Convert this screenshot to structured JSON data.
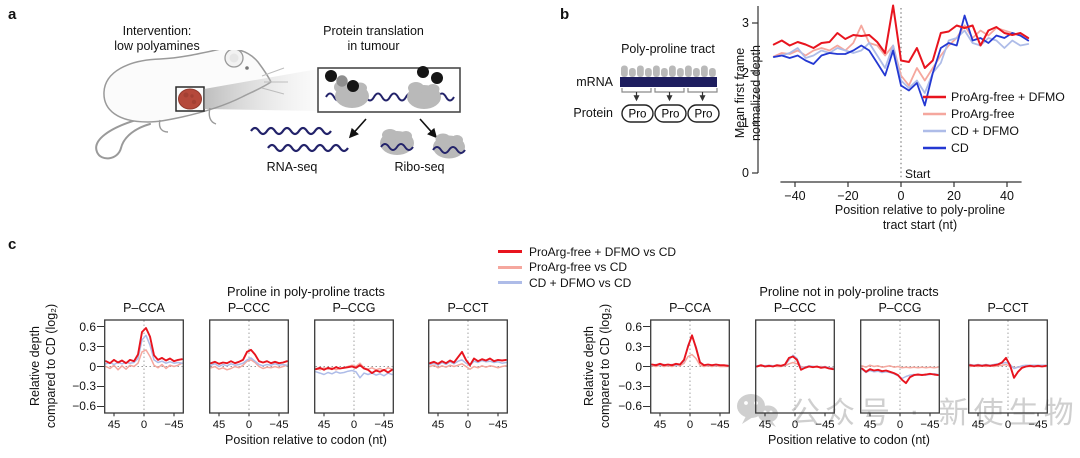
{
  "figure": {
    "panel_a_label": "a",
    "panel_b_label": "b",
    "panel_c_label": "c"
  },
  "panel_a": {
    "intervention_line1": "Intervention:",
    "intervention_line2": "low polyamines",
    "translation_line1": "Protein translation",
    "translation_line2": "in tumour",
    "rna_seq_label": "RNA-seq",
    "ribo_seq_label": "Ribo-seq",
    "colors": {
      "tumor": "#b5493b",
      "mrna": "#23236a",
      "ribosome": "#b9b9b9"
    }
  },
  "panel_b": {
    "diagram": {
      "tract_label": "Poly-proline tract",
      "mrna_label": "mRNA",
      "protein_label": "Protein",
      "pro_labels": [
        "Pro",
        "Pro",
        "Pro"
      ]
    }
  },
  "panel_c": {
    "legend": [
      {
        "label": "ProArg-free + DFMO vs CD",
        "color": "#e8141e"
      },
      {
        "label": "ProArg-free vs CD",
        "color": "#f5a79e"
      },
      {
        "label": "CD + DFMO vs CD",
        "color": "#aebce8"
      }
    ]
  },
  "watermark": {
    "icon": "wechat-icon",
    "text": "公众号 · 新使生物"
  },
  "chart_data": [
    {
      "id": "panel-b-metagene",
      "type": "line",
      "ylabel_lines": [
        "Mean first frame",
        "normalized depth"
      ],
      "xlabel_lines": [
        "Position relative to poly-proline",
        "tract start (nt)"
      ],
      "xlim": [
        -48,
        48
      ],
      "ylim": [
        0,
        3.4
      ],
      "xticks": [
        -40,
        -20,
        0,
        20,
        40
      ],
      "yticks": [
        0,
        1,
        2,
        3
      ],
      "annotation": {
        "text": "Start",
        "x": 0
      },
      "legend_position": "right-inside",
      "x": [
        -48,
        -45,
        -42,
        -39,
        -36,
        -33,
        -30,
        -27,
        -24,
        -21,
        -18,
        -15,
        -12,
        -9,
        -6,
        -3,
        0,
        3,
        6,
        9,
        12,
        15,
        18,
        21,
        24,
        27,
        30,
        33,
        36,
        39,
        42,
        45,
        48
      ],
      "series": [
        {
          "name": "ProArg-free + DFMO",
          "color": "#e8141e",
          "values": [
            2.57,
            2.65,
            2.55,
            2.62,
            2.57,
            2.5,
            2.6,
            2.62,
            2.8,
            2.68,
            2.76,
            2.74,
            2.76,
            2.62,
            2.4,
            3.35,
            2.25,
            2.22,
            2.5,
            2.1,
            2.25,
            2.8,
            2.83,
            2.95,
            2.9,
            2.95,
            2.55,
            2.85,
            2.92,
            2.8,
            2.76,
            2.8,
            2.7
          ]
        },
        {
          "name": "ProArg-free",
          "color": "#f5a79e",
          "values": [
            2.33,
            2.4,
            2.38,
            2.45,
            2.35,
            2.45,
            2.5,
            2.45,
            2.55,
            2.45,
            2.6,
            2.95,
            2.6,
            2.55,
            2.35,
            2.55,
            1.95,
            1.75,
            2.1,
            1.85,
            2.1,
            2.35,
            2.55,
            2.7,
            2.95,
            2.7,
            2.85,
            2.75,
            2.9,
            2.85,
            2.8,
            2.75,
            2.65
          ]
        },
        {
          "name": "CD + DFMO",
          "color": "#aebce8",
          "values": [
            2.32,
            2.35,
            2.4,
            2.5,
            2.3,
            2.35,
            2.45,
            2.4,
            2.5,
            2.45,
            2.4,
            2.45,
            2.6,
            2.35,
            2.1,
            2.55,
            1.85,
            1.7,
            1.85,
            1.6,
            2.0,
            2.2,
            2.65,
            2.7,
            2.85,
            2.6,
            2.55,
            2.7,
            2.65,
            2.5,
            2.65,
            2.55,
            2.58
          ]
        },
        {
          "name": "CD",
          "color": "#2438d2",
          "values": [
            2.32,
            2.35,
            2.3,
            2.35,
            2.25,
            2.18,
            2.35,
            2.4,
            2.38,
            2.38,
            2.45,
            2.55,
            2.45,
            2.2,
            1.95,
            2.45,
            1.75,
            1.65,
            1.8,
            1.35,
            2.0,
            2.5,
            2.6,
            2.55,
            3.15,
            2.65,
            2.7,
            2.6,
            2.75,
            2.7,
            2.8,
            2.75,
            2.65
          ]
        }
      ]
    },
    {
      "id": "panel-c-in-tracts",
      "type": "line-small-multiples",
      "group_title": "Proline in poly-proline tracts",
      "ylabel_lines": [
        "Relative depth",
        "compared to CD (log₂)"
      ],
      "xlabel": "Position relative to codon (nt)",
      "xlim": [
        60,
        -60
      ],
      "ylim": [
        -0.7,
        0.7
      ],
      "xticks": [
        45,
        0,
        -45
      ],
      "yticks": [
        0.6,
        0.3,
        0,
        -0.3,
        -0.6
      ],
      "series_names": [
        "ProArg-free + DFMO vs CD",
        "ProArg-free vs CD",
        "CD + DFMO vs CD"
      ],
      "series_colors": [
        "#e8141e",
        "#f5a79e",
        "#aebce8"
      ],
      "x": [
        57,
        51,
        45,
        39,
        33,
        27,
        21,
        15,
        9,
        3,
        -3,
        -9,
        -15,
        -21,
        -27,
        -33,
        -39,
        -45,
        -51,
        -57
      ],
      "subplots": [
        {
          "title": "P–CCA",
          "series": [
            [
              0.08,
              0.05,
              0.1,
              0.06,
              0.09,
              0.05,
              0.1,
              0.08,
              0.18,
              0.52,
              0.58,
              0.45,
              0.17,
              0.1,
              0.13,
              0.09,
              0.12,
              0.08,
              0.1,
              0.11
            ],
            [
              0.0,
              -0.03,
              0.02,
              -0.05,
              0.01,
              -0.04,
              0.02,
              0.0,
              0.05,
              0.22,
              0.25,
              0.15,
              0.02,
              -0.02,
              0.03,
              -0.03,
              0.02,
              0.0,
              0.02,
              0.05
            ],
            [
              0.04,
              0.06,
              0.03,
              0.06,
              0.04,
              0.06,
              0.05,
              0.06,
              0.12,
              0.4,
              0.47,
              0.32,
              0.1,
              0.06,
              0.08,
              0.05,
              0.07,
              0.05,
              0.06,
              0.05
            ]
          ]
        },
        {
          "title": "P–CCC",
          "series": [
            [
              0.05,
              0.07,
              0.04,
              0.06,
              0.05,
              0.08,
              0.05,
              0.07,
              0.1,
              0.22,
              0.25,
              0.18,
              0.08,
              0.06,
              0.08,
              0.05,
              0.07,
              0.05,
              0.06,
              0.08
            ],
            [
              -0.02,
              0.0,
              -0.04,
              -0.02,
              -0.05,
              -0.03,
              0.0,
              -0.02,
              0.02,
              0.08,
              0.1,
              0.06,
              0.0,
              -0.03,
              -0.01,
              -0.02,
              0.0,
              -0.02,
              0.0,
              0.02
            ],
            [
              0.02,
              0.04,
              0.0,
              0.03,
              0.01,
              0.04,
              0.02,
              0.03,
              0.05,
              0.1,
              0.13,
              0.08,
              0.03,
              0.01,
              0.03,
              0.02,
              0.04,
              0.02,
              0.03,
              0.02
            ]
          ]
        },
        {
          "title": "P–CCG",
          "series": [
            [
              -0.04,
              -0.02,
              -0.05,
              -0.02,
              -0.04,
              -0.01,
              -0.03,
              -0.02,
              -0.01,
              0.0,
              -0.02,
              0.02,
              -0.03,
              -0.05,
              -0.1,
              -0.06,
              -0.08,
              -0.05,
              -0.09,
              -0.05
            ],
            [
              -0.03,
              -0.05,
              -0.02,
              -0.04,
              -0.02,
              -0.05,
              -0.03,
              -0.02,
              0.0,
              0.02,
              0.0,
              0.05,
              -0.02,
              -0.04,
              -0.02,
              -0.05,
              -0.03,
              -0.06,
              -0.02,
              -0.04
            ],
            [
              -0.08,
              -0.1,
              -0.12,
              -0.09,
              -0.11,
              -0.08,
              -0.1,
              -0.09,
              -0.07,
              -0.06,
              -0.08,
              -0.17,
              -0.1,
              -0.12,
              -0.1,
              -0.13,
              -0.11,
              -0.14,
              -0.1,
              -0.12
            ]
          ]
        },
        {
          "title": "P–CCT",
          "series": [
            [
              0.05,
              0.07,
              0.04,
              0.08,
              0.05,
              0.09,
              0.06,
              0.14,
              0.22,
              0.1,
              0.02,
              0.12,
              0.08,
              0.11,
              0.09,
              0.12,
              0.08,
              0.1,
              0.09,
              0.1
            ],
            [
              0.0,
              0.02,
              -0.02,
              0.01,
              -0.01,
              0.02,
              0.0,
              0.02,
              0.04,
              0.0,
              -0.04,
              0.0,
              -0.02,
              0.01,
              -0.01,
              0.01,
              0.0,
              -0.02,
              0.0,
              0.01
            ],
            [
              0.03,
              0.05,
              0.02,
              0.06,
              0.03,
              0.07,
              0.04,
              0.08,
              0.1,
              0.05,
              0.02,
              0.08,
              0.06,
              0.09,
              0.07,
              0.08,
              0.06,
              0.07,
              0.05,
              0.06
            ]
          ]
        }
      ]
    },
    {
      "id": "panel-c-not-in-tracts",
      "type": "line-small-multiples",
      "group_title": "Proline not in poly-proline tracts",
      "ylabel_lines": [
        "Relative depth",
        "compared to CD (log₂)"
      ],
      "xlabel": "Position relative to codon (nt)",
      "xlim": [
        60,
        -60
      ],
      "ylim": [
        -0.7,
        0.7
      ],
      "xticks": [
        45,
        0,
        -45
      ],
      "yticks": [
        0.6,
        0.3,
        0,
        -0.3,
        -0.6
      ],
      "series_names": [
        "ProArg-free + DFMO vs CD",
        "ProArg-free vs CD",
        "CD + DFMO vs CD"
      ],
      "series_colors": [
        "#e8141e",
        "#f5a79e",
        "#aebce8"
      ],
      "x": [
        57,
        51,
        45,
        39,
        33,
        27,
        21,
        15,
        9,
        3,
        -3,
        -9,
        -15,
        -21,
        -27,
        -33,
        -39,
        -45,
        -51,
        -57
      ],
      "subplots": [
        {
          "title": "P–CCA",
          "series": [
            [
              0.03,
              0.02,
              0.04,
              0.02,
              0.03,
              0.02,
              0.04,
              0.03,
              0.1,
              0.3,
              0.47,
              0.28,
              0.06,
              0.02,
              0.03,
              0.02,
              0.03,
              0.02,
              0.02,
              0.01
            ],
            [
              0.01,
              0.0,
              0.02,
              0.0,
              0.01,
              0.0,
              0.02,
              0.01,
              0.05,
              0.15,
              0.18,
              0.12,
              0.02,
              0.0,
              0.01,
              0.0,
              0.01,
              0.0,
              0.0,
              0.0
            ],
            [
              0.02,
              0.03,
              0.02,
              0.03,
              0.02,
              0.03,
              0.02,
              0.03,
              0.08,
              0.32,
              0.45,
              0.3,
              0.07,
              0.02,
              0.02,
              0.02,
              0.02,
              0.02,
              0.02,
              0.02
            ]
          ]
        },
        {
          "title": "P–CCC",
          "series": [
            [
              0.0,
              0.02,
              0.0,
              0.01,
              0.0,
              0.02,
              0.01,
              0.03,
              0.13,
              0.15,
              0.1,
              -0.05,
              -0.02,
              0.0,
              -0.01,
              0.0,
              -0.02,
              -0.01,
              -0.03,
              -0.04
            ],
            [
              0.0,
              0.01,
              0.0,
              0.0,
              0.01,
              0.0,
              0.0,
              0.01,
              0.04,
              0.06,
              0.04,
              0.0,
              -0.01,
              0.0,
              0.0,
              -0.01,
              0.0,
              -0.01,
              -0.02,
              -0.02
            ],
            [
              0.01,
              0.02,
              0.01,
              0.02,
              0.01,
              0.02,
              0.01,
              0.02,
              0.1,
              0.17,
              0.12,
              -0.02,
              -0.01,
              0.01,
              0.0,
              0.0,
              -0.01,
              0.0,
              -0.02,
              -0.03
            ]
          ]
        },
        {
          "title": "P–CCG",
          "series": [
            [
              -0.03,
              -0.08,
              -0.04,
              -0.06,
              -0.05,
              -0.07,
              -0.06,
              -0.08,
              -0.1,
              -0.13,
              -0.2,
              -0.25,
              -0.16,
              -0.13,
              -0.12,
              -0.13,
              -0.12,
              -0.11,
              -0.12,
              -0.13
            ],
            [
              0.01,
              -0.01,
              0.02,
              0.0,
              0.01,
              -0.01,
              0.0,
              0.01,
              -0.01,
              0.0,
              -0.02,
              -0.01,
              -0.02,
              -0.01,
              -0.02,
              -0.01,
              -0.02,
              -0.01,
              -0.02,
              -0.01
            ],
            [
              -0.04,
              -0.09,
              -0.06,
              -0.08,
              -0.07,
              -0.09,
              -0.08,
              -0.09,
              -0.11,
              -0.14,
              -0.18,
              -0.15,
              -0.13,
              -0.12,
              -0.13,
              -0.12,
              -0.13,
              -0.12,
              -0.11,
              -0.12
            ]
          ]
        },
        {
          "title": "P–CCT",
          "series": [
            [
              0.02,
              0.01,
              0.02,
              0.01,
              0.02,
              0.01,
              0.02,
              0.03,
              0.06,
              0.13,
              0.02,
              -0.17,
              -0.08,
              -0.02,
              0.0,
              0.01,
              0.0,
              0.01,
              0.0,
              0.01
            ],
            [
              0.0,
              0.01,
              0.0,
              0.01,
              0.0,
              0.01,
              0.0,
              0.01,
              0.02,
              0.03,
              0.0,
              -0.02,
              -0.01,
              0.0,
              0.0,
              0.0,
              0.0,
              0.0,
              0.0,
              0.0
            ],
            [
              0.03,
              0.02,
              0.03,
              0.02,
              0.03,
              0.02,
              0.03,
              0.04,
              0.05,
              0.06,
              0.03,
              -0.03,
              -0.01,
              0.01,
              0.02,
              0.02,
              0.02,
              0.02,
              0.02,
              0.02
            ]
          ]
        }
      ]
    }
  ]
}
